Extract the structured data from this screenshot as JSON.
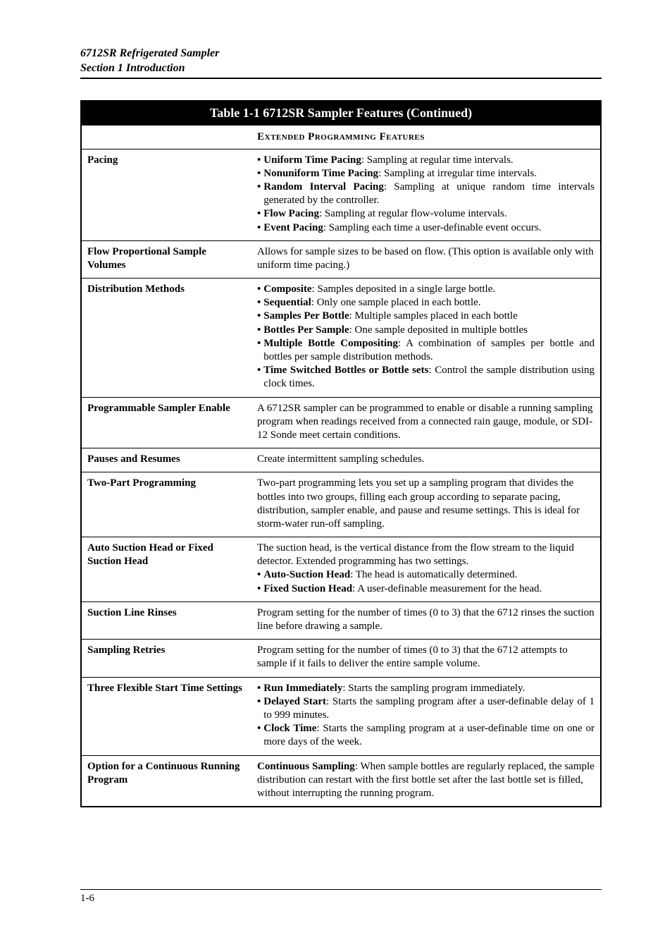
{
  "doc_header_line1": "6712SR Refrigerated Sampler",
  "doc_header_line2": "Section 1  Introduction",
  "table_title": "Table 1-1  6712SR Sampler Features (Continued)",
  "section_heading": "Extended Programming Features",
  "rows": [
    {
      "label": "Pacing",
      "bullets": [
        {
          "bold": "Uniform Time Pacing",
          "rest": ": Sampling at regular time intervals."
        },
        {
          "bold": "Nonuniform Time Pacing",
          "rest": ": Sampling at irregular time intervals."
        },
        {
          "bold": "Random Interval Pacing",
          "rest": ": Sampling at unique random time intervals generated by the controller."
        },
        {
          "bold": "Flow Pacing",
          "rest": ": Sampling at regular flow-volume intervals."
        },
        {
          "bold": "Event Pacing",
          "rest": ": Sampling each time a user-definable event occurs."
        }
      ]
    },
    {
      "label": "Flow Proportional Sample Volumes",
      "plain": "Allows for sample sizes to be based on flow. (This option is available only with uniform time pacing.)"
    },
    {
      "label": "Distribution Methods",
      "bullets": [
        {
          "bold": "Composite",
          "rest": ": Samples deposited in a single large bottle."
        },
        {
          "bold": "Sequential",
          "rest": ": Only one sample placed in each bottle."
        },
        {
          "bold": "Samples Per Bottle",
          "rest": ": Multiple samples placed in each bottle"
        },
        {
          "bold": "Bottles Per Sample",
          "rest": ": One sample deposited in multiple bottles"
        },
        {
          "bold": "Multiple Bottle Compositing",
          "rest": ": A combination of samples per bottle and bottles per sample distribution methods."
        },
        {
          "bold": "Time Switched Bottles or Bottle sets",
          "rest": ": Control the sample distribution using clock times."
        }
      ]
    },
    {
      "label": "Programmable Sampler Enable",
      "plain": "A 6712SR sampler can be programmed to enable or disable a running sampling program when readings received from a connected rain gauge, module, or SDI-12 Sonde meet certain conditions."
    },
    {
      "label": "Pauses and Resumes",
      "plain": "Create intermittent sampling schedules."
    },
    {
      "label": "Two-Part Programming",
      "plain": "Two-part programming lets you set up a sampling program that divides the bottles into two groups, filling each group according to separate pacing, distribution, sampler enable, and pause and resume settings. This is ideal for storm-water run-off sampling."
    },
    {
      "label": "Auto Suction Head or Fixed Suction Head",
      "intro": "The suction head, is the vertical distance from the flow stream to the liquid detector. Extended programming has two settings.",
      "bullets": [
        {
          "bold": "Auto-Suction Head",
          "rest": ": The head is automatically determined."
        },
        {
          "bold": "Fixed Suction Head",
          "rest": ": A user-definable measurement for the head."
        }
      ]
    },
    {
      "label": "Suction Line Rinses",
      "plain": "Program setting for the number of times (0 to 3) that the 6712 rinses the suction line before drawing a sample."
    },
    {
      "label": "Sampling Retries",
      "plain": "Program setting for the number of times (0 to 3) that the 6712 attempts to sample if it fails to deliver the entire sample volume."
    },
    {
      "label": "Three Flexible Start Time Settings",
      "bullets": [
        {
          "bold": "Run Immediately",
          "rest": ": Starts the sampling program immediately."
        },
        {
          "bold": "Delayed Start",
          "rest": ": Starts the sampling program after a user-definable delay of 1 to 999 minutes."
        },
        {
          "bold": "Clock Time",
          "rest": ": Starts the sampling program at a user-definable time on one or more days of the week."
        }
      ]
    },
    {
      "label": "Option for a Continuous Running Program",
      "lead_bold": "Continuous Sampling",
      "lead_rest": ": When sample bottles are regularly replaced, the sample distribution can restart with the first bottle set after the last bottle set is filled, without interrupting the running program."
    }
  ],
  "page_number": "1-6",
  "colors": {
    "text": "#000000",
    "bg": "#ffffff",
    "title_bg": "#000000",
    "title_fg": "#ffffff"
  }
}
